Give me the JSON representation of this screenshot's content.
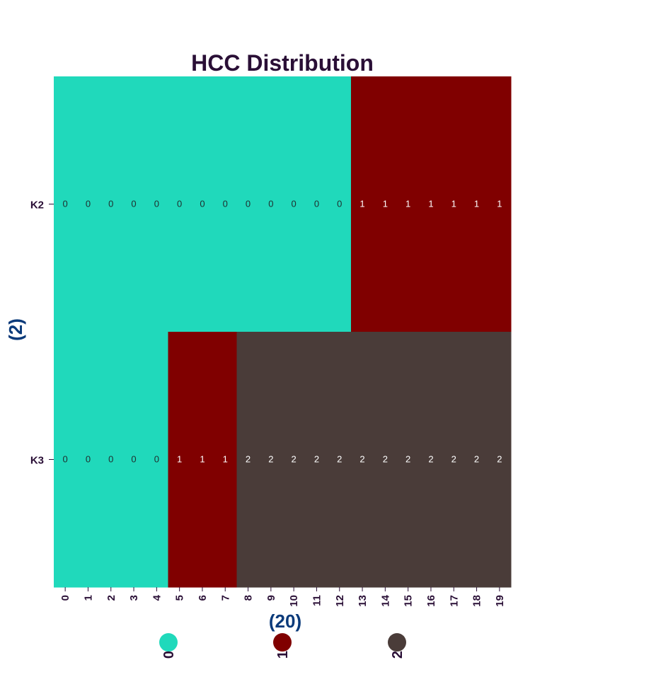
{
  "chart_data": {
    "type": "heatmap",
    "title": "HCC Distribution",
    "xlabel": "(20)",
    "ylabel": "(2)",
    "x_categories": [
      "0",
      "1",
      "2",
      "3",
      "4",
      "5",
      "6",
      "7",
      "8",
      "9",
      "10",
      "11",
      "12",
      "13",
      "14",
      "15",
      "16",
      "17",
      "18",
      "19"
    ],
    "y_categories": [
      "K2",
      "K3"
    ],
    "values": [
      [
        0,
        0,
        0,
        0,
        0,
        0,
        0,
        0,
        0,
        0,
        0,
        0,
        0,
        1,
        1,
        1,
        1,
        1,
        1,
        1
      ],
      [
        0,
        0,
        0,
        0,
        0,
        1,
        1,
        1,
        2,
        2,
        2,
        2,
        2,
        2,
        2,
        2,
        2,
        2,
        2,
        2
      ]
    ],
    "annotated": true,
    "grid": false,
    "legend": {
      "placement": "bottom",
      "entries": [
        {
          "label": "0",
          "color": "#20d9bb"
        },
        {
          "label": "1",
          "color": "#800000"
        },
        {
          "label": "2",
          "color": "#4a3c39"
        }
      ]
    },
    "colors": {
      "0": "#20d9bb",
      "1": "#800000",
      "2": "#4a3c39"
    },
    "annotation_colors": {
      "0": "#1f2d2d",
      "1": "#ffffff",
      "2": "#ffffff"
    }
  }
}
